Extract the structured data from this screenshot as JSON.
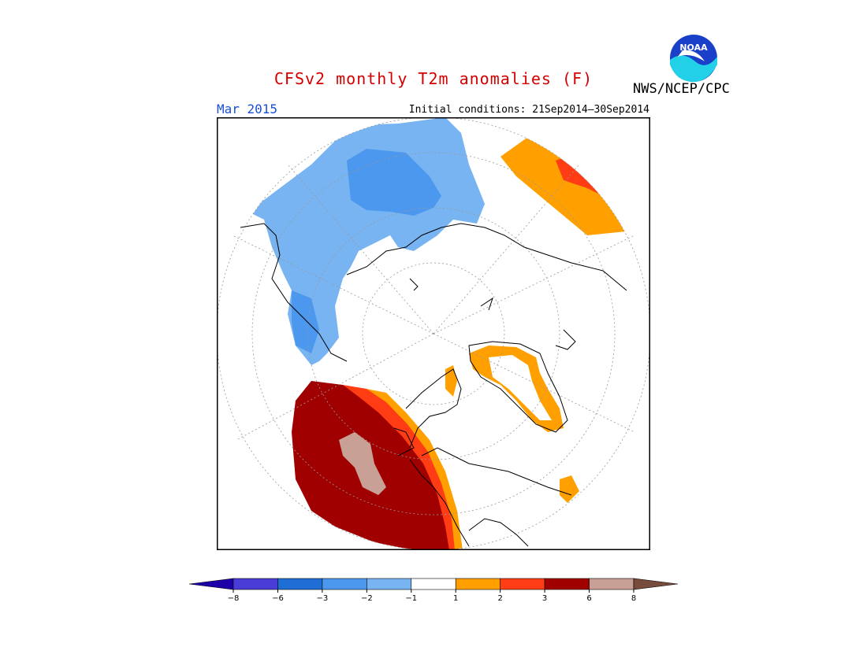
{
  "header": {
    "title": "CFSv2 monthly T2m anomalies (F)",
    "month": "Mar 2015",
    "initial_conditions": "Initial conditions: 21Sep2014–30Sep2014",
    "agency": "NWS/NCEP/CPC",
    "logo_text": "NOAA",
    "logo_icon": "noaa-logo-icon"
  },
  "colors": {
    "title": "#d40000",
    "month": "#1a4fd6",
    "ocean_ring": "#ffffff",
    "coast": "#000000"
  },
  "colorbar": {
    "labels": [
      "−8",
      "−6",
      "−3",
      "−2",
      "−1",
      "1",
      "2",
      "3",
      "6",
      "8"
    ],
    "bins": [
      {
        "range": "< -8",
        "color": "#1e00a8"
      },
      {
        "range": "-8 to -6",
        "color": "#4a3cd6"
      },
      {
        "range": "-6 to -3",
        "color": "#1e6ed6"
      },
      {
        "range": "-3 to -2",
        "color": "#4b98ee"
      },
      {
        "range": "-2 to -1",
        "color": "#78b4f2"
      },
      {
        "range": "-1 to 1",
        "color": "#ffffff"
      },
      {
        "range": "1 to 2",
        "color": "#ffa000"
      },
      {
        "range": "2 to 3",
        "color": "#ff3c14"
      },
      {
        "range": "3 to 6",
        "color": "#a00000"
      },
      {
        "range": "6 to 8",
        "color": "#c8a096"
      },
      {
        "range": "> 8",
        "color": "#784c3c"
      }
    ]
  },
  "map": {
    "projection": "north-polar-stereographic",
    "regions": [
      {
        "name": "siberia",
        "category": "-2 to -1"
      },
      {
        "name": "central-siberia",
        "category": "-3 to -2"
      },
      {
        "name": "central-asia",
        "category": "-2 to -1"
      },
      {
        "name": "western-north-america",
        "category": "3 to 6"
      },
      {
        "name": "alaska-yukon",
        "category": "6 to 8"
      },
      {
        "name": "north-america-coast",
        "category": "2 to 3"
      },
      {
        "name": "north-america-edge",
        "category": "1 to 2"
      },
      {
        "name": "greenland-rim",
        "category": "1 to 2"
      },
      {
        "name": "east-asia",
        "category": "1 to 2"
      },
      {
        "name": "east-asia-core",
        "category": "2 to 3"
      }
    ]
  }
}
